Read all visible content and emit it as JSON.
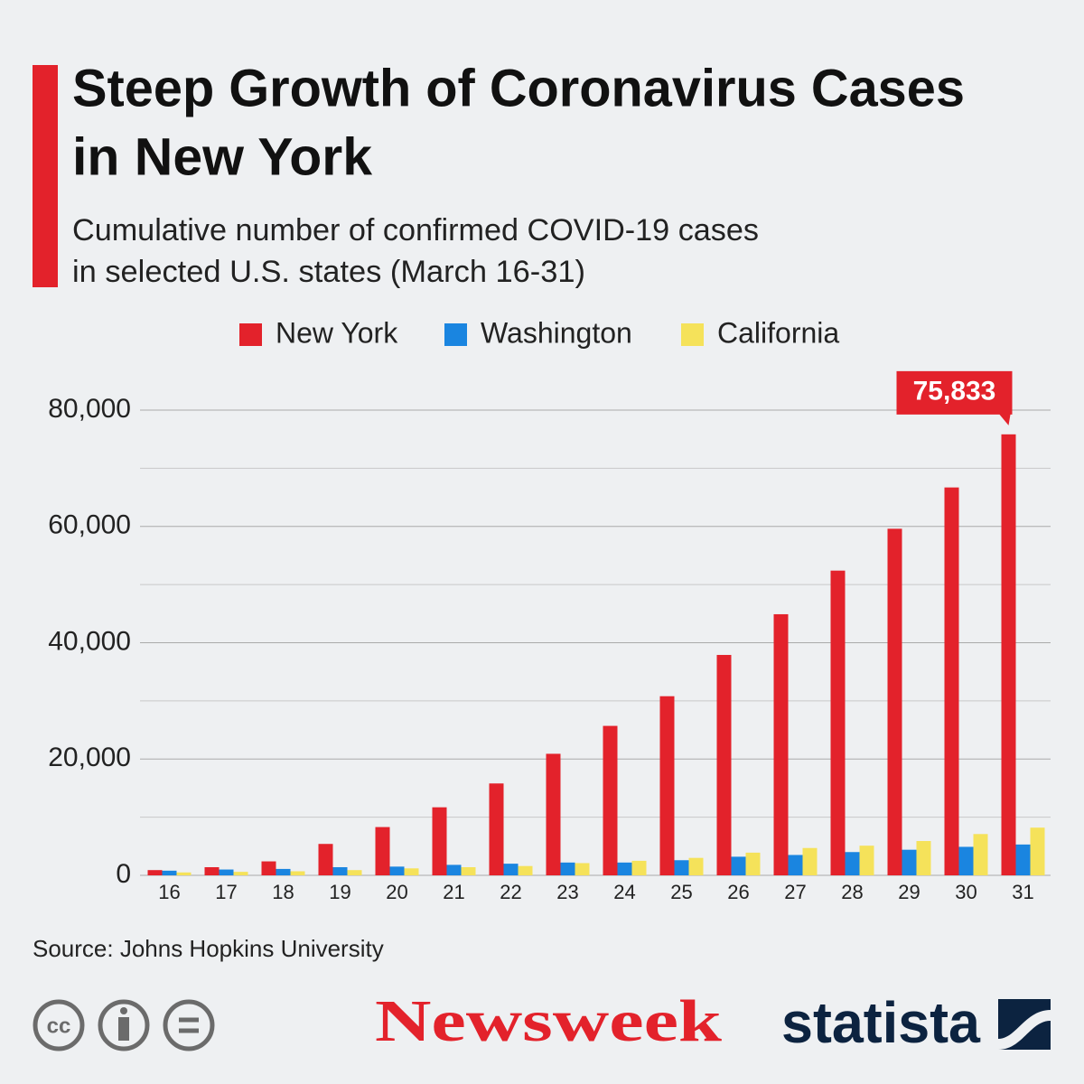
{
  "chart_data": {
    "type": "bar",
    "title": [
      "Steep Growth of Coronavirus Cases",
      "in New York"
    ],
    "subtitle": [
      "Cumulative number of confirmed COVID-19 cases",
      "in selected U.S. states (March 16-31)"
    ],
    "categories": [
      "16",
      "17",
      "18",
      "19",
      "20",
      "21",
      "22",
      "23",
      "24",
      "25",
      "26",
      "27",
      "28",
      "29",
      "30",
      "31"
    ],
    "series": [
      {
        "name": "New York",
        "color": "#e3222b",
        "values": [
          900,
          1400,
          2400,
          5400,
          8300,
          11700,
          15800,
          20900,
          25700,
          30800,
          37900,
          44900,
          52400,
          59600,
          66700,
          75833
        ],
        "value_labels": [
          null,
          null,
          null,
          null,
          null,
          null,
          null,
          null,
          null,
          null,
          null,
          null,
          null,
          null,
          null,
          "75,833"
        ]
      },
      {
        "name": "Washington",
        "color": "#1a85e0",
        "values": [
          800,
          1000,
          1100,
          1400,
          1500,
          1800,
          2000,
          2200,
          2200,
          2600,
          3200,
          3500,
          4000,
          4400,
          4900,
          5300
        ]
      },
      {
        "name": "California",
        "color": "#f5e25a",
        "values": [
          500,
          600,
          700,
          900,
          1200,
          1400,
          1600,
          2100,
          2500,
          3000,
          3900,
          4700,
          5100,
          5900,
          7100,
          8200
        ]
      }
    ],
    "ylim": [
      0,
      80000
    ],
    "yticks": [
      0,
      {
        "value": 20000,
        "label": "20,000"
      },
      {
        "value": 40000,
        "label": "40,000"
      },
      {
        "value": 60000,
        "label": "60,000"
      },
      {
        "value": 80000,
        "label": "80,000"
      }
    ],
    "minor_yticks": [
      10000,
      30000,
      50000,
      70000
    ],
    "grid": true,
    "legend": "top",
    "source": "Source: Johns Hopkins University",
    "publisher": "Newsweek",
    "brand": "statista"
  }
}
